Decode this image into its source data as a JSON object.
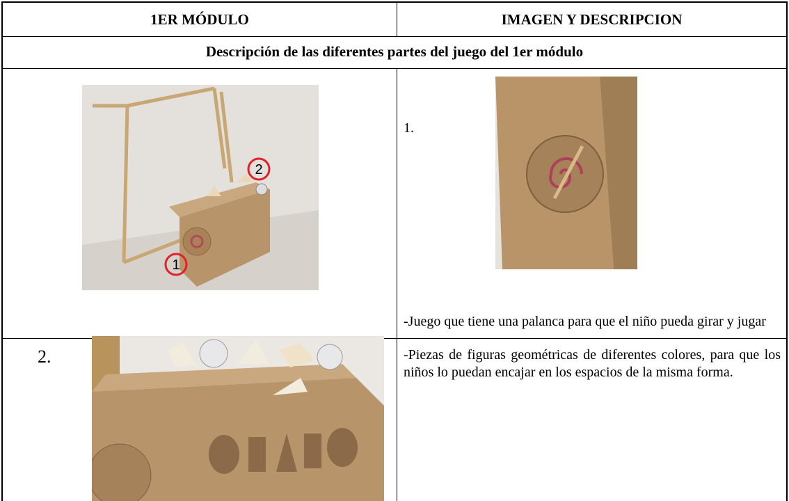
{
  "table": {
    "header": [
      "1ER MÓDULO",
      "IMAGEN Y DESCRIPCION"
    ],
    "subtitle": "Descripción de las diferentes partes del juego del 1er módulo",
    "rows": [
      {
        "number": "1.",
        "description": "-Juego que tiene una palanca para que el niño pueda girar y jugar",
        "photo_markers": [
          "1",
          "2"
        ]
      },
      {
        "number": "2.",
        "description": "-Piezas de figuras geométricas de diferentes colores, para que los niños lo puedan encajar en los espacios de la misma forma."
      }
    ]
  }
}
